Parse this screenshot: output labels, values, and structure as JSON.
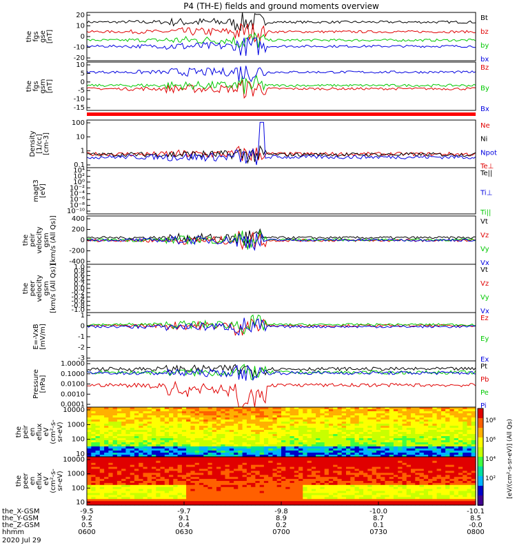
{
  "title": "P4 (TH-E) fields and ground moments overview",
  "date": "2020 Jul 29",
  "colors": {
    "black": "#000000",
    "red": "#e00000",
    "green": "#00c800",
    "blue": "#0000e0"
  },
  "chart_data": [
    {
      "type": "line",
      "ylabel": [
        "the",
        "fgs",
        "gse",
        "[nT]"
      ],
      "yticks": [
        "20",
        "10",
        "0",
        "-10",
        "-20"
      ],
      "ylim": [
        -20,
        20
      ],
      "scale": "linear",
      "series": [
        {
          "name": "Bt",
          "color": "black",
          "base": 12
        },
        {
          "name": "bz",
          "color": "red",
          "base": 4
        },
        {
          "name": "by",
          "color": "green",
          "base": -3
        },
        {
          "name": "bx",
          "color": "blue",
          "base": -8
        }
      ]
    },
    {
      "type": "line",
      "ylabel": [
        "the",
        "fgs",
        "gsm",
        "[nT]"
      ],
      "yticks": [
        "10",
        "5",
        "0",
        "-5",
        "-10",
        "-15"
      ],
      "ylim": [
        -17,
        12
      ],
      "scale": "linear",
      "series": [
        {
          "name": "Bz",
          "color": "red",
          "base": -4
        },
        {
          "name": "By",
          "color": "green",
          "base": -2
        },
        {
          "name": "Bx",
          "color": "blue",
          "base": 6
        }
      ]
    },
    {
      "type": "line",
      "ylabel": [
        "Density",
        "[1/cc]",
        "[cm-3]"
      ],
      "yticks": [
        "100",
        "10",
        "1",
        "0.1"
      ],
      "ylim": [
        0.05,
        300
      ],
      "scale": "log",
      "series": [
        {
          "name": "Ne",
          "color": "red",
          "base": 0.6
        },
        {
          "name": "Ni",
          "color": "black",
          "base": 0.55
        },
        {
          "name": "Npot",
          "color": "blue",
          "base": 0.35
        },
        {
          "name": "Te⊥",
          "color": "red"
        }
      ]
    },
    {
      "type": "line",
      "ylabel": [
        "magt3",
        "[eV]"
      ],
      "yticks": [
        "10⁴",
        "10²",
        "10⁰",
        "10⁻²",
        "10⁻⁴",
        "10⁻⁶",
        "10⁻⁸",
        "10⁻¹⁰"
      ],
      "ylim": [
        1e-11,
        100000.0
      ],
      "scale": "log",
      "series": [
        {
          "name": "Te||",
          "color": "black"
        },
        {
          "name": "Ti⊥",
          "color": "blue"
        },
        {
          "name": "Ti||",
          "color": "green"
        }
      ]
    },
    {
      "type": "line",
      "ylabel": [
        "the",
        "peir",
        "velocity",
        "gsm",
        "[km/s (All Qs)]"
      ],
      "yticks": [
        "400",
        "200",
        "0",
        "-200",
        "-400"
      ],
      "ylim": [
        -400,
        400
      ],
      "scale": "linear",
      "series": [
        {
          "name": "Vt",
          "color": "black",
          "base": 40
        },
        {
          "name": "Vz",
          "color": "red",
          "base": -5
        },
        {
          "name": "Vy",
          "color": "green",
          "base": 5
        },
        {
          "name": "Vx",
          "color": "blue",
          "base": 0
        }
      ]
    },
    {
      "type": "line",
      "ylabel": [
        "the",
        "peer",
        "velocity",
        "gsm",
        "[km/s (All Qs)]"
      ],
      "yticks": [
        "1.0",
        "0.8",
        "0.6",
        "0.4",
        "0.2",
        "0.0",
        "-0.2",
        "-0.4",
        "-0.6",
        "-0.8",
        "-1.0"
      ],
      "ylim": [
        -1,
        1
      ],
      "scale": "linear",
      "series": [
        {
          "name": "Vt",
          "color": "black"
        },
        {
          "name": "Vz",
          "color": "red"
        },
        {
          "name": "Vy",
          "color": "green"
        },
        {
          "name": "Vx",
          "color": "blue"
        }
      ]
    },
    {
      "type": "line",
      "ylabel": [
        "E=-VxB",
        "[mV/m]"
      ],
      "yticks": [
        "1",
        "0",
        "-1",
        "-2",
        "-3"
      ],
      "ylim": [
        -3.5,
        1.3
      ],
      "scale": "linear",
      "series": [
        {
          "name": "Ez",
          "color": "red",
          "base": 0
        },
        {
          "name": "Ey",
          "color": "green",
          "base": 0.1
        },
        {
          "name": "Ex",
          "color": "blue",
          "base": -0.1
        }
      ]
    },
    {
      "type": "line",
      "ylabel": [
        "Pressure",
        "[nPa]"
      ],
      "yticks": [
        "1.0000",
        "0.1000",
        "0.0100",
        "0.0010",
        "0.0001"
      ],
      "ylim": [
        0.0001,
        1
      ],
      "scale": "log",
      "series": [
        {
          "name": "Pt",
          "color": "black",
          "base": 0.2
        },
        {
          "name": "Pb",
          "color": "red",
          "base": 0.008
        },
        {
          "name": "Pe",
          "color": "green",
          "base": 0.1
        },
        {
          "name": "Pi",
          "color": "blue",
          "base": 0.09
        }
      ]
    },
    {
      "type": "heatmap",
      "ylabel": [
        "the",
        "peir",
        "en",
        "eflux",
        "eV",
        "(cm²-s-",
        "sr-eV)"
      ],
      "yticks": [
        "10000",
        "1000",
        "100",
        "10"
      ],
      "ylim": [
        5,
        25000
      ],
      "scale": "log"
    },
    {
      "type": "heatmap",
      "ylabel": [
        "the",
        "peer",
        "en",
        "eflux",
        "eV",
        "(cm²-s-",
        "sr-eV)"
      ],
      "yticks": [
        "10000",
        "1000",
        "100",
        "10"
      ],
      "ylim": [
        5,
        25000
      ],
      "scale": "log"
    }
  ],
  "colorbar": {
    "label": "[eV/(cm²-s-sr-eV)] (All Qs)",
    "ticks": [
      "10⁸",
      "10⁶",
      "10⁴",
      "10²"
    ]
  },
  "xaxis": {
    "rows": [
      {
        "label": "the_X-GSM",
        "values": [
          "-9.5",
          "-9.7",
          "-9.8",
          "-10.0",
          "-10.1"
        ]
      },
      {
        "label": "the_Y-GSM",
        "values": [
          "9.2",
          "9.1",
          "8.9",
          "8.7",
          "8.5"
        ]
      },
      {
        "label": "the_Z-GSM",
        "values": [
          "0.5",
          "0.4",
          "0.2",
          "0.1",
          "-0.0"
        ]
      },
      {
        "label": "hhmm",
        "values": [
          "0600",
          "0630",
          "0700",
          "0730",
          "0800"
        ]
      }
    ]
  }
}
